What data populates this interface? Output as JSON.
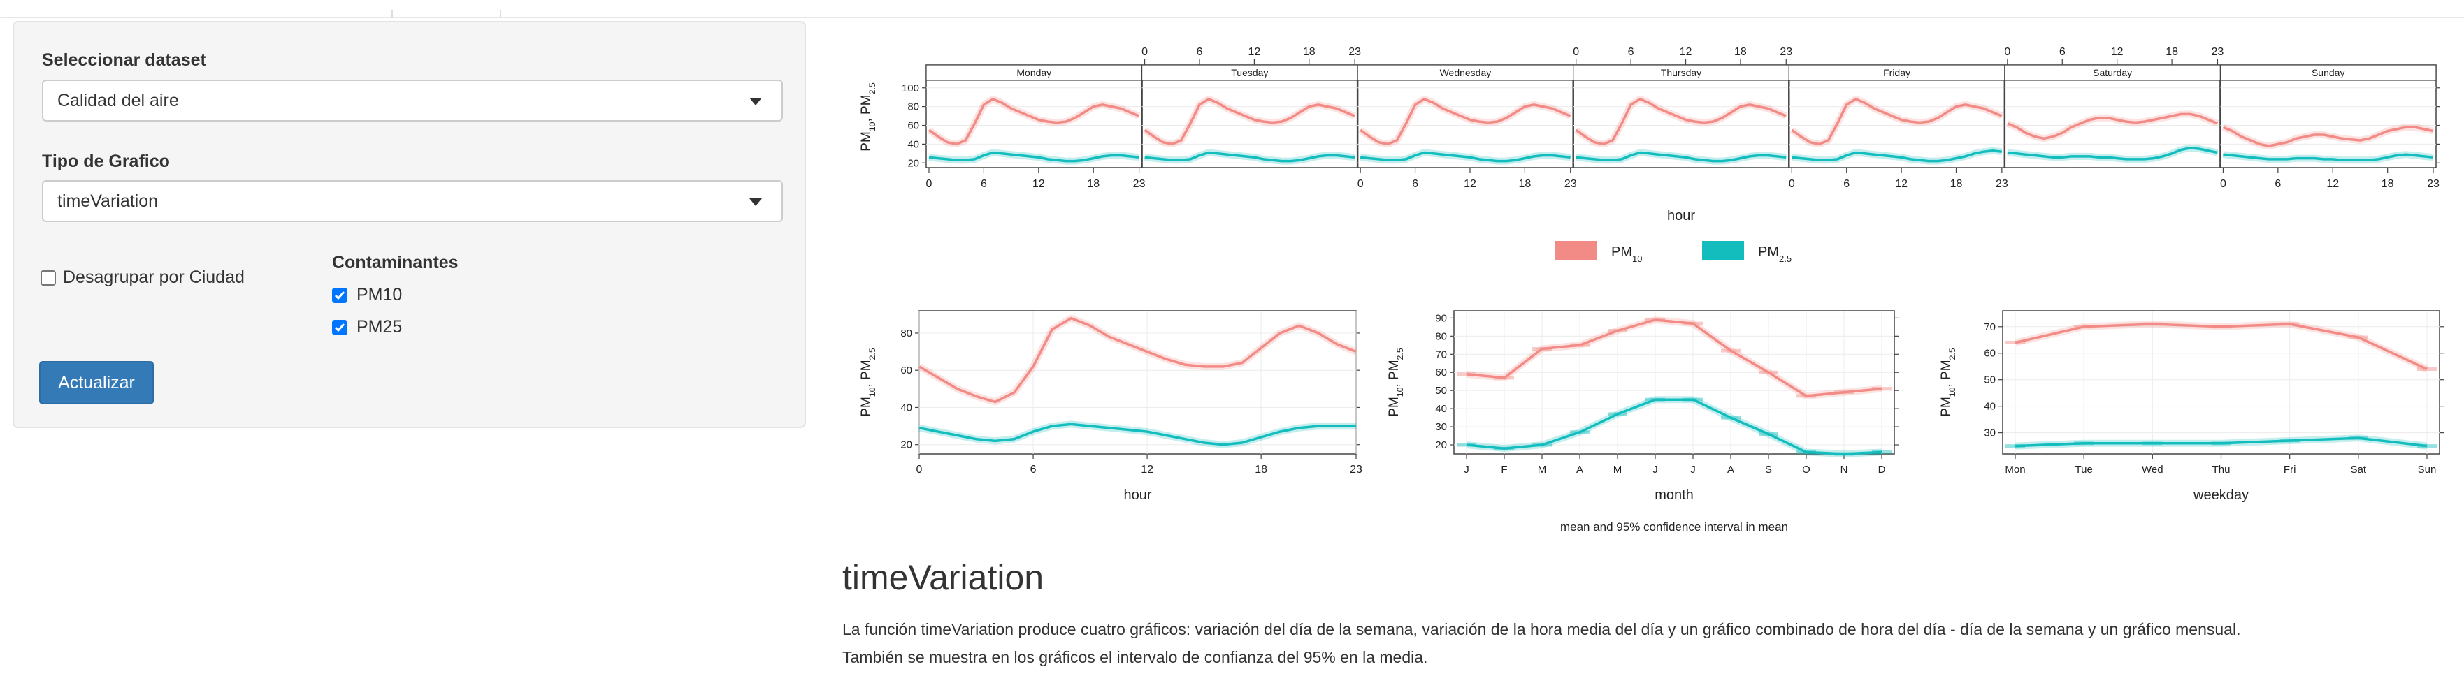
{
  "sidebar": {
    "dataset_label": "Seleccionar dataset",
    "dataset_value": "Calidad del aire",
    "chart_type_label": "Tipo de Grafico",
    "chart_type_value": "timeVariation",
    "ungroup_label": "Desagrupar por Ciudad",
    "ungroup_checked": false,
    "pollutants_label": "Contaminantes",
    "pollutants": [
      {
        "label": "PM10",
        "checked": true
      },
      {
        "label": "PM25",
        "checked": true
      }
    ],
    "update_button": "Actualizar"
  },
  "content": {
    "title": "timeVariation",
    "description_line1": "La función timeVariation produce cuatro gráficos: variación del día de la semana, variación de la hora media del día y un gráfico combinado de hora del día - día de la semana y un gráfico mensual.",
    "description_line2": "También se muestra en los gráficos el intervalo de confianza del 95% en la media."
  },
  "colors": {
    "pm10": "#f28b86",
    "pm25": "#14bdbd",
    "button": "#337ab7"
  },
  "chart_data": [
    {
      "type": "line",
      "title": "",
      "xlabel": "hour",
      "ylabel": "PM10, PM2.5",
      "ylim": [
        15,
        108
      ],
      "yticks": [
        20,
        40,
        60,
        80,
        100
      ],
      "panels": [
        "Monday",
        "Tuesday",
        "Wednesday",
        "Thursday",
        "Friday",
        "Saturday",
        "Sunday"
      ],
      "xticks": [
        0,
        6,
        12,
        18,
        23
      ],
      "legend": [
        "PM10",
        "PM2.5"
      ],
      "series": [
        {
          "name": "PM10",
          "values": [
            [
              55,
              48,
              42,
              40,
              44,
              62,
              82,
              88,
              84,
              78,
              74,
              70,
              66,
              64,
              63,
              64,
              68,
              74,
              80,
              82,
              80,
              78,
              74,
              70
            ],
            [
              55,
              48,
              42,
              40,
              44,
              62,
              82,
              88,
              84,
              78,
              74,
              70,
              66,
              64,
              63,
              64,
              68,
              74,
              80,
              82,
              80,
              78,
              74,
              70
            ],
            [
              55,
              48,
              42,
              40,
              44,
              62,
              82,
              88,
              84,
              78,
              74,
              70,
              66,
              64,
              63,
              64,
              68,
              74,
              80,
              82,
              80,
              78,
              74,
              70
            ],
            [
              55,
              48,
              42,
              40,
              44,
              62,
              82,
              88,
              84,
              78,
              74,
              70,
              66,
              64,
              63,
              64,
              68,
              74,
              80,
              82,
              80,
              78,
              74,
              70
            ],
            [
              55,
              48,
              42,
              40,
              44,
              62,
              82,
              88,
              84,
              78,
              74,
              70,
              66,
              64,
              63,
              64,
              68,
              74,
              80,
              82,
              80,
              78,
              74,
              70
            ],
            [
              62,
              58,
              52,
              48,
              46,
              48,
              52,
              58,
              62,
              66,
              68,
              68,
              66,
              64,
              63,
              64,
              66,
              68,
              70,
              72,
              72,
              70,
              66,
              62
            ],
            [
              58,
              54,
              48,
              44,
              40,
              38,
              40,
              42,
              46,
              48,
              50,
              50,
              48,
              46,
              45,
              44,
              46,
              50,
              54,
              56,
              58,
              58,
              56,
              54
            ]
          ]
        },
        {
          "name": "PM2.5",
          "values": [
            [
              26,
              25,
              24,
              23,
              23,
              24,
              28,
              31,
              30,
              29,
              28,
              27,
              26,
              24,
              23,
              22,
              22,
              23,
              25,
              27,
              28,
              28,
              27,
              26
            ],
            [
              26,
              25,
              24,
              23,
              23,
              24,
              28,
              31,
              30,
              29,
              28,
              27,
              26,
              24,
              23,
              22,
              22,
              23,
              25,
              27,
              28,
              28,
              27,
              26
            ],
            [
              26,
              25,
              24,
              23,
              23,
              24,
              28,
              31,
              30,
              29,
              28,
              27,
              26,
              24,
              23,
              22,
              22,
              23,
              25,
              27,
              28,
              28,
              27,
              26
            ],
            [
              26,
              25,
              24,
              23,
              23,
              24,
              28,
              31,
              30,
              29,
              28,
              27,
              26,
              24,
              23,
              22,
              22,
              23,
              25,
              27,
              28,
              28,
              27,
              26
            ],
            [
              26,
              25,
              24,
              23,
              23,
              24,
              28,
              31,
              30,
              29,
              28,
              27,
              26,
              24,
              23,
              22,
              22,
              23,
              25,
              27,
              30,
              32,
              33,
              32
            ],
            [
              31,
              30,
              29,
              28,
              27,
              26,
              26,
              27,
              27,
              27,
              26,
              26,
              25,
              24,
              24,
              24,
              25,
              27,
              30,
              34,
              36,
              35,
              33,
              31
            ],
            [
              29,
              28,
              27,
              26,
              25,
              24,
              24,
              24,
              25,
              25,
              25,
              24,
              24,
              23,
              23,
              23,
              23,
              24,
              26,
              28,
              29,
              28,
              27,
              26
            ]
          ]
        }
      ]
    },
    {
      "type": "line",
      "xlabel": "hour",
      "ylabel": "PM10, PM2.5",
      "ylim": [
        15,
        92
      ],
      "yticks": [
        20,
        40,
        60,
        80
      ],
      "x": [
        0,
        1,
        2,
        3,
        4,
        5,
        6,
        7,
        8,
        9,
        10,
        11,
        12,
        13,
        14,
        15,
        16,
        17,
        18,
        19,
        20,
        21,
        22,
        23
      ],
      "xticks": [
        0,
        6,
        12,
        18,
        23
      ],
      "series": [
        {
          "name": "PM10",
          "values": [
            62,
            56,
            50,
            46,
            43,
            48,
            62,
            82,
            88,
            84,
            78,
            74,
            70,
            66,
            63,
            62,
            62,
            64,
            72,
            80,
            84,
            80,
            74,
            70
          ]
        },
        {
          "name": "PM2.5",
          "values": [
            29,
            27,
            25,
            23,
            22,
            23,
            27,
            30,
            31,
            30,
            29,
            28,
            27,
            25,
            23,
            21,
            20,
            21,
            24,
            27,
            29,
            30,
            30,
            30
          ]
        }
      ]
    },
    {
      "type": "line",
      "xlabel": "month",
      "ylabel": "PM10, PM2.5",
      "ylim": [
        15,
        94
      ],
      "yticks": [
        20,
        30,
        40,
        50,
        60,
        70,
        80,
        90
      ],
      "categories": [
        "J",
        "F",
        "M",
        "A",
        "M",
        "J",
        "J",
        "A",
        "S",
        "O",
        "N",
        "D"
      ],
      "series": [
        {
          "name": "PM10",
          "values": [
            59,
            57,
            73,
            75,
            83,
            89,
            87,
            72,
            60,
            47,
            49,
            51
          ]
        },
        {
          "name": "PM2.5",
          "values": [
            20,
            18,
            20,
            27,
            37,
            45,
            45,
            35,
            26,
            16,
            15,
            16
          ]
        }
      ],
      "caption": "mean and 95% confidence interval in mean"
    },
    {
      "type": "line",
      "xlabel": "weekday",
      "ylabel": "PM10, PM2.5",
      "ylim": [
        22,
        76
      ],
      "yticks": [
        30,
        40,
        50,
        60,
        70
      ],
      "categories": [
        "Mon",
        "Tue",
        "Wed",
        "Thu",
        "Fri",
        "Sat",
        "Sun"
      ],
      "series": [
        {
          "name": "PM10",
          "values": [
            64,
            70,
            71,
            70,
            71,
            66,
            54
          ]
        },
        {
          "name": "PM2.5",
          "values": [
            25,
            26,
            26,
            26,
            27,
            28,
            25
          ]
        }
      ]
    }
  ]
}
